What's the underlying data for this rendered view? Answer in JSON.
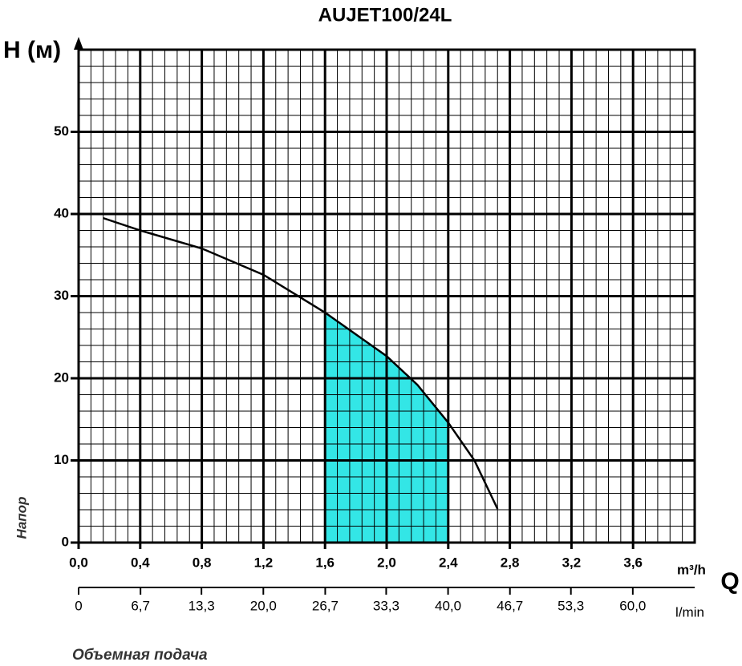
{
  "chart_data": {
    "type": "line",
    "title": "AUJET100/24L",
    "y_label": "H (м)",
    "y_axis_title": "Напор",
    "x_unit": "m³/h",
    "x_symbol": "Q",
    "x2_unit": "l/min",
    "x_axis_title": "Объемная подача",
    "x": [
      0.16,
      0.4,
      0.8,
      1.2,
      1.6,
      2.0,
      2.2,
      2.4,
      2.57,
      2.72
    ],
    "series": [
      {
        "name": "H",
        "color": "#000000",
        "values": [
          39.5,
          38.0,
          35.8,
          32.6,
          28.0,
          22.7,
          19.2,
          14.6,
          10.0,
          4.1
        ]
      }
    ],
    "operating_range": [
      1.6,
      2.4
    ],
    "operating_color": "#33e6e6",
    "xlim": [
      0,
      4.0
    ],
    "xticks": [
      {
        "value": 0,
        "label": "0,0"
      },
      {
        "value": 0.4,
        "label": "0,4"
      },
      {
        "value": 0.8,
        "label": "0,8"
      },
      {
        "value": 1.2,
        "label": "1,2"
      },
      {
        "value": 1.6,
        "label": "1,6"
      },
      {
        "value": 2.0,
        "label": "2,0"
      },
      {
        "value": 2.4,
        "label": "2,4"
      },
      {
        "value": 2.8,
        "label": "2,8"
      },
      {
        "value": 3.2,
        "label": "3,2"
      },
      {
        "value": 3.6,
        "label": "3,6"
      }
    ],
    "x2lim": [
      0,
      66.7
    ],
    "x2ticks": [
      0,
      {
        "value": 6.7,
        "label": "6,7"
      },
      {
        "value": 13.3,
        "label": "13,3"
      },
      {
        "value": 20.0,
        "label": "20,0"
      },
      {
        "value": 26.7,
        "label": "26,7"
      },
      {
        "value": 33.3,
        "label": "33,3"
      },
      {
        "value": 40.0,
        "label": "40,0"
      },
      {
        "value": 46.7,
        "label": "46,7"
      },
      {
        "value": 53.3,
        "label": "53,3"
      },
      {
        "value": 60.0,
        "label": "60,0"
      }
    ],
    "ylim": [
      0,
      60
    ],
    "yticks": [
      0,
      10,
      20,
      30,
      40,
      50
    ],
    "grid": true
  }
}
